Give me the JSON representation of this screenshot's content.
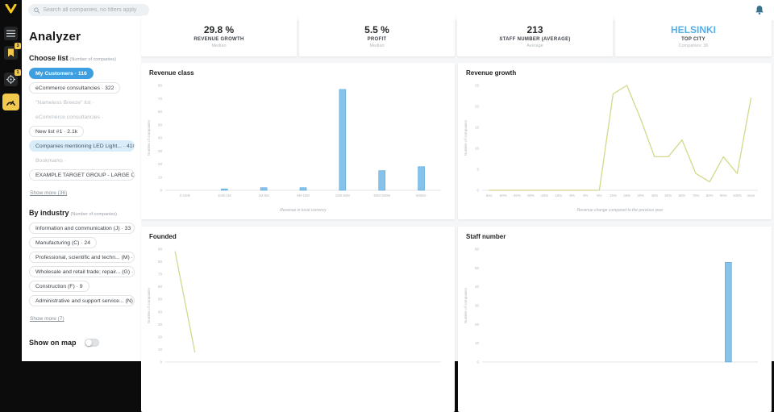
{
  "topbar": {
    "search_placeholder": "Search all companies, no filters apply"
  },
  "sidebar": {
    "items": [
      {
        "icon": "list-icon",
        "badge": ""
      },
      {
        "icon": "bookmark-icon",
        "badge": "3"
      },
      {
        "icon": "target-icon",
        "badge": "1"
      },
      {
        "icon": "gauge-icon",
        "badge": "",
        "active": true
      }
    ]
  },
  "panel": {
    "title": "Analyzer",
    "choose_list": {
      "title": "Choose list",
      "subtitle": "(Number of companies)",
      "items": [
        {
          "label": "My Customers · 116",
          "style": "selected"
        },
        {
          "label": "eCommerce consultancies · 322",
          "style": "normal"
        },
        {
          "label": "\"Nameless Breeze\" list ·",
          "style": "muted"
        },
        {
          "label": "eCommerce consultancies ·",
          "style": "muted"
        },
        {
          "label": "New list #1 · 2.1k",
          "style": "normal"
        },
        {
          "label": "Companies mentioning LED Light... · 410",
          "style": "highlight"
        },
        {
          "label": "Bookmarks ·",
          "style": "muted"
        },
        {
          "label": "EXAMPLE TARGET GROUP - LARGE C... · 52.6k",
          "style": "normal"
        }
      ],
      "show_more": "Show more (36)"
    },
    "by_industry": {
      "title": "By industry",
      "subtitle": "(Number of companies)",
      "items": [
        "Information and communication (J) · 33",
        "Manufacturing (C) · 24",
        "Professional, scientific and techn... (M) · 16",
        "Wholesale and retail trade; repair... (G) · 9",
        "Construction (F) · 9",
        "Administrative and support service... (N) · 8"
      ],
      "show_more": "Show more (7)"
    },
    "show_on_map": {
      "label": "Show on map",
      "enabled": false
    }
  },
  "kpis": [
    {
      "value": "29.8 %",
      "label": "REVENUE GROWTH",
      "sub": "Median"
    },
    {
      "value": "5.5 %",
      "label": "PROFIT",
      "sub": "Median"
    },
    {
      "value": "213",
      "label": "STAFF NUMBER (AVERAGE)",
      "sub": "Average"
    },
    {
      "value": "HELSINKI",
      "label": "TOP CITY",
      "sub": "Companies: 36"
    }
  ],
  "chart_data": [
    {
      "id": "revenue_class",
      "type": "bar",
      "title": "Revenue class",
      "categories": [
        "0-100k",
        "100k-1M",
        "1M-5M",
        "5M-10M",
        "10M-50M",
        "50M-500M",
        "500M+"
      ],
      "values": [
        0,
        1,
        2,
        2,
        77,
        15,
        18
      ],
      "xlabel": "Revenue in local currency",
      "ylabel": "Number of companies",
      "ylim": [
        0,
        80
      ],
      "ytick_step": 10,
      "grid": false,
      "legend": "none"
    },
    {
      "id": "revenue_growth",
      "type": "line",
      "title": "Revenue growth",
      "categories": [
        "less",
        "-50%",
        "-40%",
        "-30%",
        "-25%",
        "-15%",
        "-5%",
        "0%",
        "5%",
        "15%",
        "25%",
        "30%",
        "40%",
        "50%",
        "60%",
        "75%",
        "80%",
        "90%",
        "100%",
        "more"
      ],
      "values": [
        0,
        0,
        0,
        0,
        0,
        0,
        0,
        0,
        0,
        23,
        25,
        17,
        8,
        8,
        12,
        4,
        2,
        8,
        4,
        22
      ],
      "xlabel": "Revenue change compared to the previous year",
      "ylabel": "Number of companies",
      "ylim": [
        0,
        25
      ],
      "ytick_step": 5,
      "grid": false,
      "legend": "none"
    },
    {
      "id": "founded",
      "type": "line",
      "title": "Founded",
      "categories": [
        "",
        "",
        "",
        "",
        "",
        "",
        "",
        "",
        "",
        "",
        "",
        "",
        "",
        ""
      ],
      "values": [
        88,
        8,
        null,
        null,
        null,
        null,
        null,
        null,
        null,
        null,
        null,
        null,
        null,
        null
      ],
      "xlabel": "",
      "ylabel": "Number of companies",
      "ylim": [
        0,
        90
      ],
      "ytick_step": 10,
      "grid": false,
      "legend": "none",
      "cropped_at_viewport_bottom": true
    },
    {
      "id": "staff_number",
      "type": "bar",
      "title": "Staff number",
      "categories": [
        "",
        "",
        "",
        "",
        "",
        "",
        "",
        "",
        "",
        "",
        "",
        "",
        "",
        ""
      ],
      "values": [
        null,
        null,
        null,
        null,
        null,
        null,
        null,
        null,
        null,
        null,
        null,
        null,
        53,
        null
      ],
      "xlabel": "",
      "ylabel": "Number of companies",
      "ylim": [
        0,
        60
      ],
      "ytick_step": 10,
      "grid": false,
      "legend": "none",
      "cropped_at_viewport_bottom": true
    }
  ],
  "colors": {
    "accent_blue": "#3d9ee0",
    "pill_highlight_bg": "#d9ecf9",
    "bar_fill": "#85c3ea",
    "bar_stroke": "#58a5d8",
    "line": "#d4d88b",
    "sidebar_accent": "#f2c94c",
    "city_value": "#56b0e8",
    "axis_text": "#b3b9be"
  }
}
